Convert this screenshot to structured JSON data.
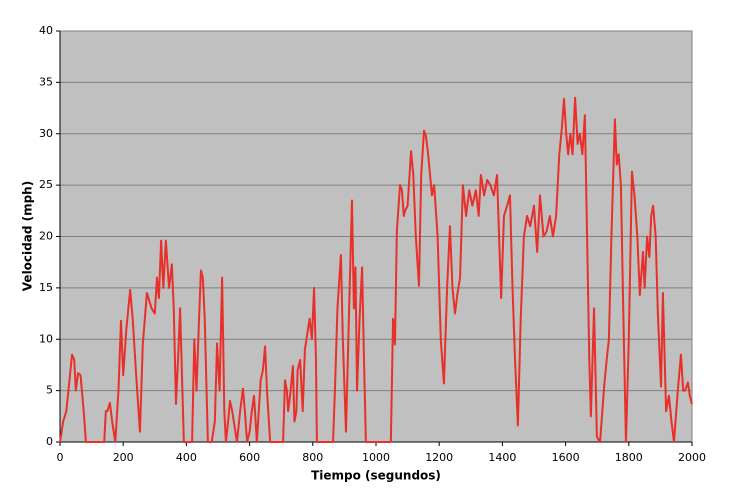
{
  "chart_data": {
    "type": "line",
    "xlabel": "Tiempo (segundos)",
    "ylabel": "Velocidad (mph)",
    "color": "#e8302a",
    "grid": true,
    "xlim": [
      0,
      2000
    ],
    "xticks": [
      0,
      200,
      400,
      600,
      800,
      1000,
      1200,
      1400,
      1600,
      1800,
      2000
    ],
    "ylim": [
      0,
      40
    ],
    "yticks": [
      0,
      5,
      10,
      15,
      20,
      25,
      30,
      35,
      40
    ],
    "x": [
      0,
      5,
      10,
      20,
      30,
      38,
      45,
      50,
      57,
      65,
      75,
      82,
      90,
      100,
      120,
      140,
      145,
      150,
      158,
      165,
      175,
      185,
      193,
      200,
      210,
      222,
      230,
      240,
      253,
      262,
      275,
      290,
      300,
      307,
      313,
      320,
      327,
      335,
      345,
      354,
      360,
      367,
      375,
      380,
      392,
      418,
      425,
      432,
      440,
      446,
      452,
      458,
      468,
      480,
      490,
      497,
      505,
      513,
      520,
      525,
      532,
      538,
      545,
      560,
      570,
      579,
      585,
      592,
      600,
      607,
      614,
      619,
      623,
      635,
      642,
      649,
      655,
      665,
      706,
      712,
      718,
      722,
      730,
      737,
      742,
      748,
      752,
      760,
      768,
      775,
      790,
      797,
      804,
      810,
      813,
      864,
      870,
      878,
      889,
      895,
      905,
      915,
      924,
      930,
      935,
      940,
      948,
      956,
      962,
      968,
      1047,
      1054,
      1060,
      1066,
      1076,
      1082,
      1088,
      1092,
      1100,
      1111,
      1118,
      1126,
      1136,
      1143,
      1152,
      1158,
      1165,
      1177,
      1184,
      1195,
      1205,
      1215,
      1225,
      1234,
      1242,
      1250,
      1258,
      1266,
      1275,
      1285,
      1295,
      1305,
      1316,
      1325,
      1332,
      1342,
      1352,
      1362,
      1373,
      1383,
      1396,
      1405,
      1415,
      1424,
      1432,
      1440,
      1449,
      1458,
      1468,
      1478,
      1488,
      1500,
      1510,
      1519,
      1530,
      1540,
      1550,
      1560,
      1570,
      1580,
      1588,
      1595,
      1602,
      1608,
      1615,
      1622,
      1630,
      1638,
      1645,
      1653,
      1661,
      1668,
      1675,
      1680,
      1690,
      1699,
      1709,
      1722,
      1730,
      1737,
      1745,
      1756,
      1762,
      1768,
      1775,
      1783,
      1791,
      1800,
      1810,
      1818,
      1827,
      1835,
      1845,
      1850,
      1858,
      1865,
      1871,
      1877,
      1885,
      1892,
      1902,
      1908,
      1918,
      1927,
      1935,
      1943,
      1955,
      1965,
      1972,
      1978,
      1987,
      1993,
      2000
    ],
    "values": [
      0,
      1,
      2,
      3,
      6,
      8.5,
      8,
      5,
      6.7,
      6.5,
      3,
      0,
      0,
      0,
      0,
      0,
      3,
      3,
      3.8,
      2,
      0,
      5,
      11.8,
      6.5,
      11,
      14.8,
      12,
      7,
      1,
      9.5,
      14.5,
      13,
      12.5,
      16,
      14,
      19.6,
      15,
      19.6,
      15,
      17.3,
      13,
      3.7,
      9,
      13,
      0,
      0,
      10,
      5,
      12,
      16.7,
      16,
      12,
      0,
      0,
      2,
      9.6,
      5,
      16,
      3,
      0,
      2,
      4,
      3,
      0,
      3,
      5.2,
      3,
      0,
      1,
      3,
      4.5,
      2,
      0,
      6,
      7,
      9.3,
      5,
      0,
      0,
      6,
      5,
      3,
      5,
      7.4,
      2,
      3,
      7,
      8,
      3,
      9,
      12,
      10,
      15,
      8,
      0,
      0,
      5,
      13,
      18.2,
      10,
      1,
      13,
      23.5,
      13,
      17,
      5,
      12,
      17,
      8,
      0,
      0,
      12,
      9.5,
      20.5,
      25,
      24.5,
      22,
      22.5,
      23,
      28.3,
      26,
      20,
      15.2,
      26,
      30.3,
      29.8,
      28,
      24,
      25,
      20,
      10,
      5.7,
      15,
      21,
      15,
      12.5,
      14.5,
      16,
      25,
      22,
      24.5,
      23,
      24.5,
      22,
      26,
      24,
      25.5,
      25,
      24,
      26,
      14,
      22,
      23,
      24,
      15,
      8,
      1.6,
      12,
      20,
      22,
      21,
      23,
      18.5,
      24,
      20,
      20.5,
      22,
      20,
      22,
      28,
      30.5,
      33.4,
      30,
      28,
      30,
      28,
      33.5,
      29,
      30,
      28,
      31.8,
      20,
      8,
      2.5,
      13,
      0.5,
      0,
      5.4,
      8,
      10,
      20,
      31.4,
      27,
      28,
      25,
      12,
      0,
      10,
      26.3,
      24,
      20,
      14.3,
      18.5,
      15,
      20,
      18,
      22,
      23,
      20,
      12.5,
      5.4,
      14.5,
      3,
      4.5,
      2,
      0,
      5,
      8.5,
      5,
      5,
      5.8,
      4.5,
      3.7
    ]
  }
}
